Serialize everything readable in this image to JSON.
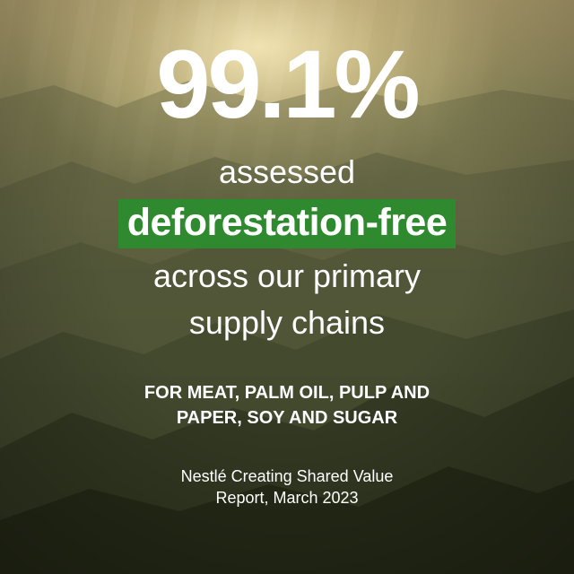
{
  "headline": {
    "stat": "99.1%",
    "line1": "assessed",
    "highlight": "deforestation-free",
    "line3": "across our primary",
    "line4": "supply chains"
  },
  "scope": {
    "line1": "FOR MEAT, PALM OIL, PULP AND",
    "line2": "PAPER, SOY AND SUGAR"
  },
  "source": {
    "line1": "Nestlé Creating Shared Value",
    "line2": "Report, March 2023"
  },
  "colors": {
    "highlight_bg": "#2f8a2f",
    "text": "#ffffff"
  }
}
